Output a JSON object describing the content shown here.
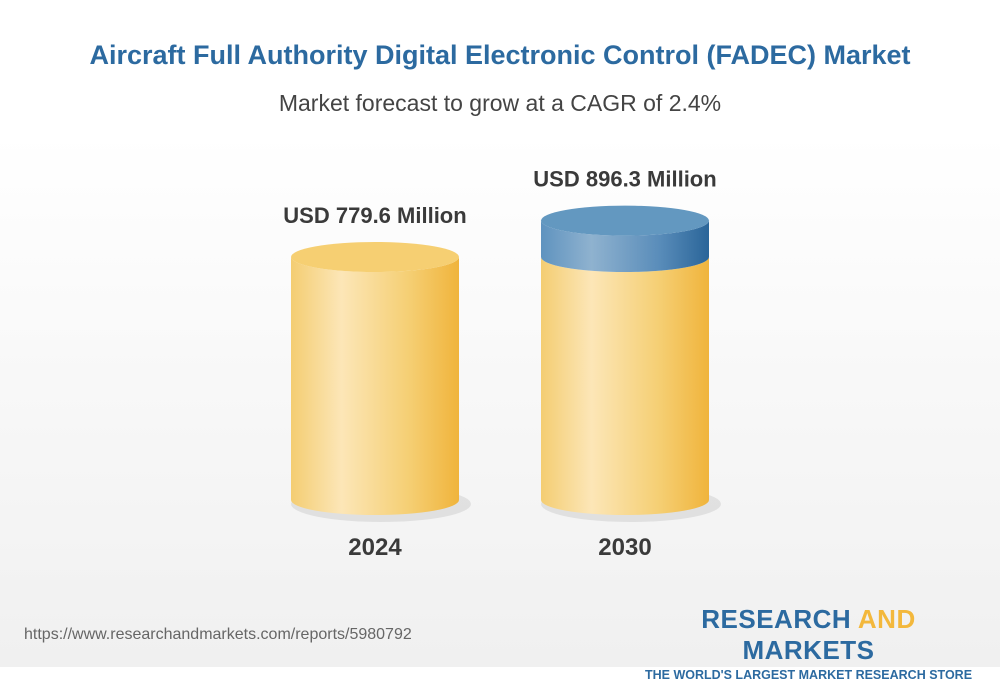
{
  "title": "Aircraft Full Authority Digital Electronic Control (FADEC) Market",
  "subtitle": "Market forecast to grow at a CAGR of 2.4%",
  "chart_data": {
    "type": "bar",
    "style": "3d-cylinder",
    "title": "Aircraft Full Authority Digital Electronic Control (FADEC) Market",
    "subtitle": "Market forecast to grow at a CAGR of 2.4%",
    "categories": [
      "2024",
      "2030"
    ],
    "values": [
      779.6,
      896.3
    ],
    "data_labels": [
      "USD 779.6 Million",
      "USD 896.3 Million"
    ],
    "unit": "USD Million",
    "colors": {
      "bar": "#f3c462",
      "growth": "#3f7db0"
    },
    "grid": false
  },
  "footer": {
    "url": "https://www.researchandmarkets.com/reports/5980792"
  },
  "logo": {
    "word1": "RESEARCH ",
    "word2": "AND",
    "word3": " MARKETS",
    "tagline": "THE WORLD'S LARGEST MARKET RESEARCH STORE"
  }
}
